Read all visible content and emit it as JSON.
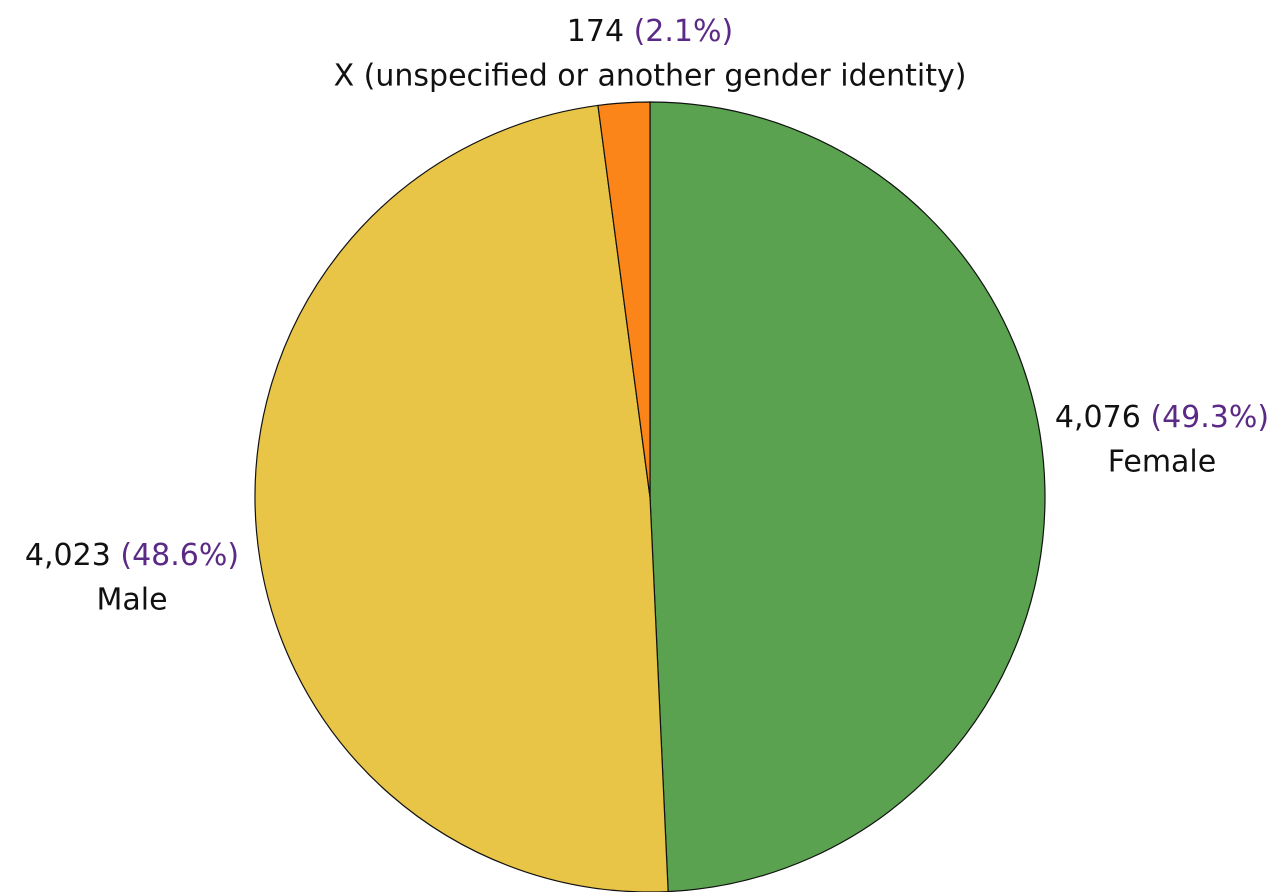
{
  "chart_data": {
    "type": "pie",
    "categories": [
      "Female",
      "Male",
      "X (unspecified or another gender identity)"
    ],
    "values": [
      4076,
      4023,
      174
    ],
    "value_labels": [
      "4,076",
      "4,023",
      "174"
    ],
    "percents": [
      49.3,
      48.6,
      2.1
    ],
    "percent_labels": [
      "(49.3%)",
      "(48.6%)",
      "(2.1%)"
    ],
    "colors": [
      "#5aa250",
      "#e8c547",
      "#fb8518"
    ]
  }
}
